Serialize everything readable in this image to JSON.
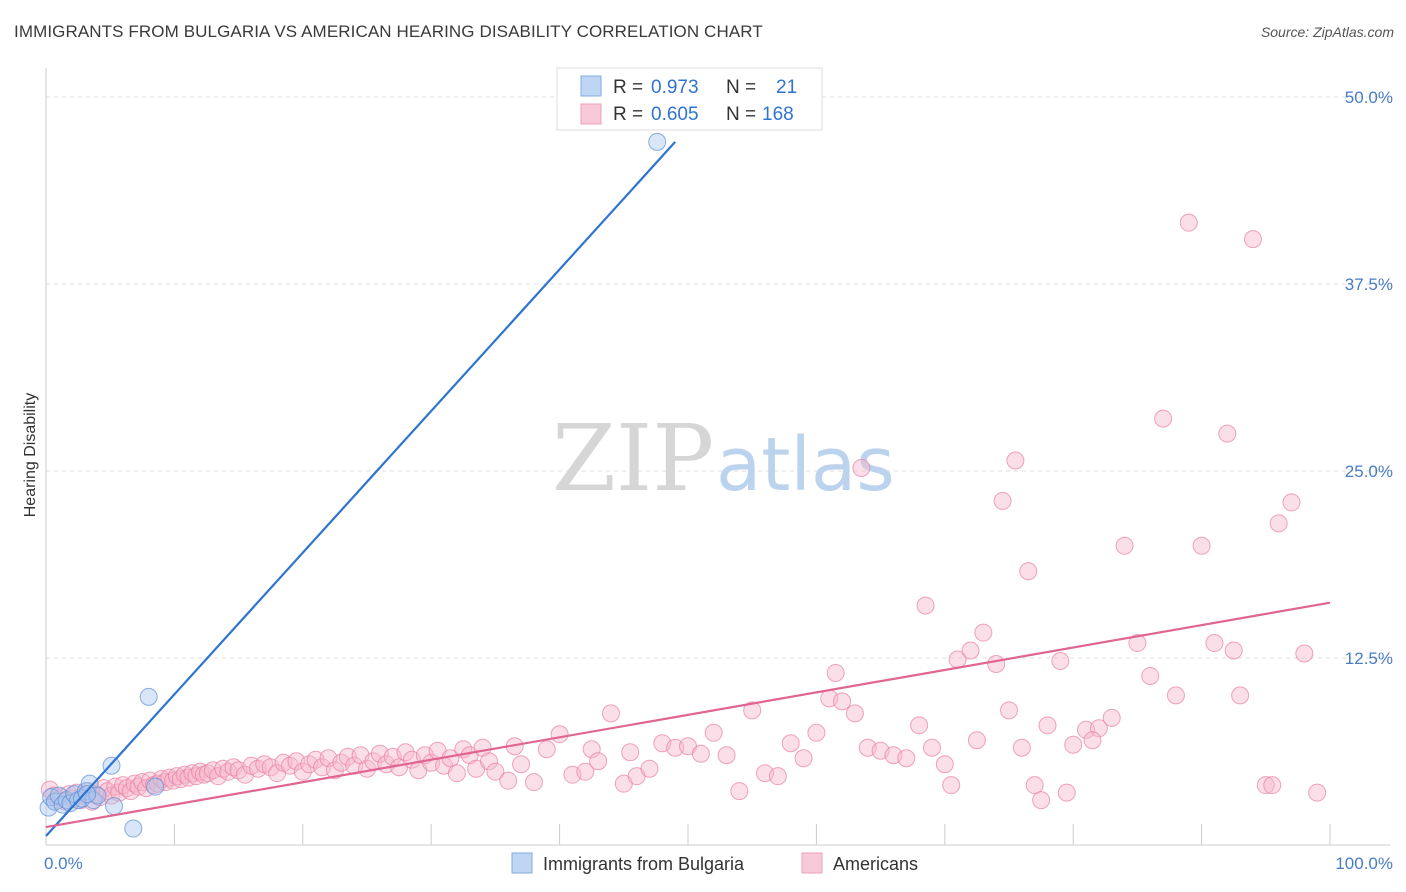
{
  "header": {
    "title": "IMMIGRANTS FROM BULGARIA VS AMERICAN HEARING DISABILITY CORRELATION CHART",
    "source": "Source: ZipAtlas.com"
  },
  "watermark": {
    "zip": "ZIP",
    "atlas": "atlas"
  },
  "colors": {
    "blue": "#5b8fd6",
    "blue_fill": "#a9c8f0",
    "blue_line": "#2f74d0",
    "pink": "#e87fa3",
    "pink_fill": "#f6b9cd",
    "pink_line": "#e06592",
    "tick_text": "#4a7cc4",
    "grid": "#dddddd"
  },
  "stats_box": {
    "rows": [
      {
        "series": "Immigrants from Bulgaria",
        "r_label": "R =",
        "r_value": "0.973",
        "n_label": "N =",
        "n_value": "21"
      },
      {
        "series": "Americans",
        "r_label": "R =",
        "r_value": "0.605",
        "n_label": "N =",
        "n_value": "168"
      }
    ]
  },
  "chart_data": {
    "type": "scatter",
    "title": "IMMIGRANTS FROM BULGARIA VS AMERICAN HEARING DISABILITY CORRELATION CHART",
    "xlabel": "",
    "ylabel": "Hearing Disability",
    "xlim": [
      0,
      100
    ],
    "ylim": [
      0,
      50
    ],
    "x_tick_labels": [
      "0.0%",
      "100.0%"
    ],
    "y_ticks": [
      12.5,
      25.0,
      37.5,
      50.0
    ],
    "y_tick_labels": [
      "12.5%",
      "25.0%",
      "37.5%",
      "50.0%"
    ],
    "grid": true,
    "legend": [
      "Immigrants from Bulgaria",
      "Americans"
    ],
    "series": [
      {
        "name": "Immigrants from Bulgaria",
        "color": "blue",
        "trend": {
          "x": [
            0,
            49.0
          ],
          "y": [
            0.6,
            47.0
          ]
        },
        "points": [
          [
            0.2,
            2.5
          ],
          [
            0.4,
            3.2
          ],
          [
            0.7,
            2.9
          ],
          [
            1.0,
            3.3
          ],
          [
            1.3,
            2.7
          ],
          [
            1.6,
            3.0
          ],
          [
            1.9,
            2.8
          ],
          [
            2.2,
            3.4
          ],
          [
            2.5,
            3.0
          ],
          [
            2.8,
            3.1
          ],
          [
            3.1,
            3.6
          ],
          [
            3.4,
            4.1
          ],
          [
            3.7,
            3.0
          ],
          [
            4.0,
            3.3
          ],
          [
            5.1,
            5.3
          ],
          [
            5.3,
            2.6
          ],
          [
            6.8,
            1.1
          ],
          [
            8.0,
            9.9
          ],
          [
            8.5,
            3.9
          ],
          [
            3.2,
            3.4
          ],
          [
            47.6,
            47.0
          ]
        ]
      },
      {
        "name": "Americans",
        "color": "pink",
        "trend": {
          "x": [
            0,
            100
          ],
          "y": [
            1.2,
            16.2
          ]
        },
        "points": [
          [
            0.3,
            3.7
          ],
          [
            0.6,
            3.3
          ],
          [
            0.9,
            3.0
          ],
          [
            1.2,
            3.2
          ],
          [
            1.5,
            2.9
          ],
          [
            1.8,
            3.4
          ],
          [
            2.1,
            3.1
          ],
          [
            2.4,
            3.5
          ],
          [
            2.7,
            3.0
          ],
          [
            3.0,
            3.3
          ],
          [
            3.3,
            3.6
          ],
          [
            3.6,
            2.9
          ],
          [
            3.9,
            3.4
          ],
          [
            4.2,
            3.2
          ],
          [
            4.5,
            3.8
          ],
          [
            4.8,
            3.6
          ],
          [
            5.1,
            3.3
          ],
          [
            5.4,
            3.9
          ],
          [
            5.7,
            3.5
          ],
          [
            6.0,
            4.0
          ],
          [
            6.3,
            3.8
          ],
          [
            6.6,
            3.6
          ],
          [
            6.9,
            4.1
          ],
          [
            7.2,
            3.9
          ],
          [
            7.5,
            4.2
          ],
          [
            7.8,
            3.8
          ],
          [
            8.1,
            4.3
          ],
          [
            8.4,
            4.0
          ],
          [
            8.7,
            4.1
          ],
          [
            9.0,
            4.4
          ],
          [
            9.3,
            4.2
          ],
          [
            9.6,
            4.5
          ],
          [
            9.9,
            4.3
          ],
          [
            10.2,
            4.6
          ],
          [
            10.5,
            4.4
          ],
          [
            10.8,
            4.7
          ],
          [
            11.1,
            4.5
          ],
          [
            11.4,
            4.8
          ],
          [
            11.7,
            4.6
          ],
          [
            12.0,
            4.9
          ],
          [
            12.3,
            4.7
          ],
          [
            12.6,
            4.8
          ],
          [
            13.0,
            5.0
          ],
          [
            13.4,
            4.6
          ],
          [
            13.8,
            5.1
          ],
          [
            14.2,
            4.9
          ],
          [
            14.6,
            5.2
          ],
          [
            15.0,
            5.0
          ],
          [
            15.5,
            4.7
          ],
          [
            16.0,
            5.3
          ],
          [
            16.5,
            5.1
          ],
          [
            17.0,
            5.4
          ],
          [
            17.5,
            5.2
          ],
          [
            18.0,
            4.8
          ],
          [
            18.5,
            5.5
          ],
          [
            19.0,
            5.3
          ],
          [
            19.5,
            5.6
          ],
          [
            20.0,
            4.9
          ],
          [
            20.5,
            5.4
          ],
          [
            21.0,
            5.7
          ],
          [
            21.5,
            5.2
          ],
          [
            22.0,
            5.8
          ],
          [
            22.5,
            5.0
          ],
          [
            23.0,
            5.5
          ],
          [
            23.5,
            5.9
          ],
          [
            24.0,
            5.3
          ],
          [
            24.5,
            6.0
          ],
          [
            25.0,
            5.1
          ],
          [
            25.5,
            5.6
          ],
          [
            26.0,
            6.1
          ],
          [
            26.5,
            5.4
          ],
          [
            27.0,
            5.9
          ],
          [
            27.5,
            5.2
          ],
          [
            28.0,
            6.2
          ],
          [
            28.5,
            5.7
          ],
          [
            29.0,
            5.0
          ],
          [
            29.5,
            6.0
          ],
          [
            30.0,
            5.5
          ],
          [
            30.5,
            6.3
          ],
          [
            31.0,
            5.3
          ],
          [
            31.5,
            5.8
          ],
          [
            32.0,
            4.8
          ],
          [
            32.5,
            6.4
          ],
          [
            33.0,
            6.0
          ],
          [
            33.5,
            5.1
          ],
          [
            34.0,
            6.5
          ],
          [
            34.5,
            5.6
          ],
          [
            35.0,
            4.9
          ],
          [
            36.0,
            4.3
          ],
          [
            36.5,
            6.6
          ],
          [
            37.0,
            5.4
          ],
          [
            38.0,
            4.2
          ],
          [
            39.0,
            6.4
          ],
          [
            40.0,
            7.4
          ],
          [
            41.0,
            4.7
          ],
          [
            42.0,
            4.9
          ],
          [
            42.5,
            6.4
          ],
          [
            43.0,
            5.6
          ],
          [
            44.0,
            8.8
          ],
          [
            45.0,
            4.1
          ],
          [
            45.5,
            6.2
          ],
          [
            46.0,
            4.6
          ],
          [
            47.0,
            5.1
          ],
          [
            48.0,
            6.8
          ],
          [
            49.0,
            6.5
          ],
          [
            50.0,
            6.6
          ],
          [
            51.0,
            6.1
          ],
          [
            52.0,
            7.5
          ],
          [
            53.0,
            6.0
          ],
          [
            54.0,
            3.6
          ],
          [
            55.0,
            9.0
          ],
          [
            56.0,
            4.8
          ],
          [
            57.0,
            4.6
          ],
          [
            58.0,
            6.8
          ],
          [
            59.0,
            5.8
          ],
          [
            60.0,
            7.5
          ],
          [
            61.0,
            9.8
          ],
          [
            61.5,
            11.5
          ],
          [
            62.0,
            9.6
          ],
          [
            63.0,
            8.8
          ],
          [
            64.0,
            6.5
          ],
          [
            65.0,
            6.3
          ],
          [
            66.0,
            6.0
          ],
          [
            67.0,
            5.8
          ],
          [
            68.0,
            8.0
          ],
          [
            69.0,
            6.5
          ],
          [
            70.0,
            5.4
          ],
          [
            71.0,
            12.4
          ],
          [
            72.0,
            13.0
          ],
          [
            73.0,
            14.2
          ],
          [
            74.0,
            12.1
          ],
          [
            75.0,
            9.0
          ],
          [
            76.0,
            6.5
          ],
          [
            77.0,
            4.0
          ],
          [
            78.0,
            8.0
          ],
          [
            79.0,
            12.3
          ],
          [
            80.0,
            6.7
          ],
          [
            81.0,
            7.7
          ],
          [
            82.0,
            7.8
          ],
          [
            83.0,
            8.5
          ],
          [
            84.0,
            20.0
          ],
          [
            85.0,
            13.5
          ],
          [
            86.0,
            11.3
          ],
          [
            87.0,
            28.5
          ],
          [
            88.0,
            10.0
          ],
          [
            89.0,
            41.6
          ],
          [
            90.0,
            20.0
          ],
          [
            91.0,
            13.5
          ],
          [
            92.0,
            27.5
          ],
          [
            93.0,
            10.0
          ],
          [
            94.0,
            40.5
          ],
          [
            95.0,
            4.0
          ],
          [
            96.0,
            21.5
          ],
          [
            97.0,
            22.9
          ],
          [
            98.0,
            12.8
          ],
          [
            99.0,
            3.5
          ],
          [
            76.5,
            18.3
          ],
          [
            75.5,
            25.7
          ],
          [
            74.5,
            23.0
          ],
          [
            77.5,
            3.0
          ],
          [
            81.5,
            7.0
          ],
          [
            70.5,
            4.0
          ],
          [
            68.5,
            16.0
          ],
          [
            63.5,
            25.2
          ],
          [
            79.5,
            3.5
          ],
          [
            72.5,
            7.0
          ],
          [
            95.5,
            4.0
          ],
          [
            92.5,
            13.0
          ]
        ]
      }
    ]
  },
  "legend": {
    "items": [
      {
        "label": "Immigrants from Bulgaria"
      },
      {
        "label": "Americans"
      }
    ]
  }
}
